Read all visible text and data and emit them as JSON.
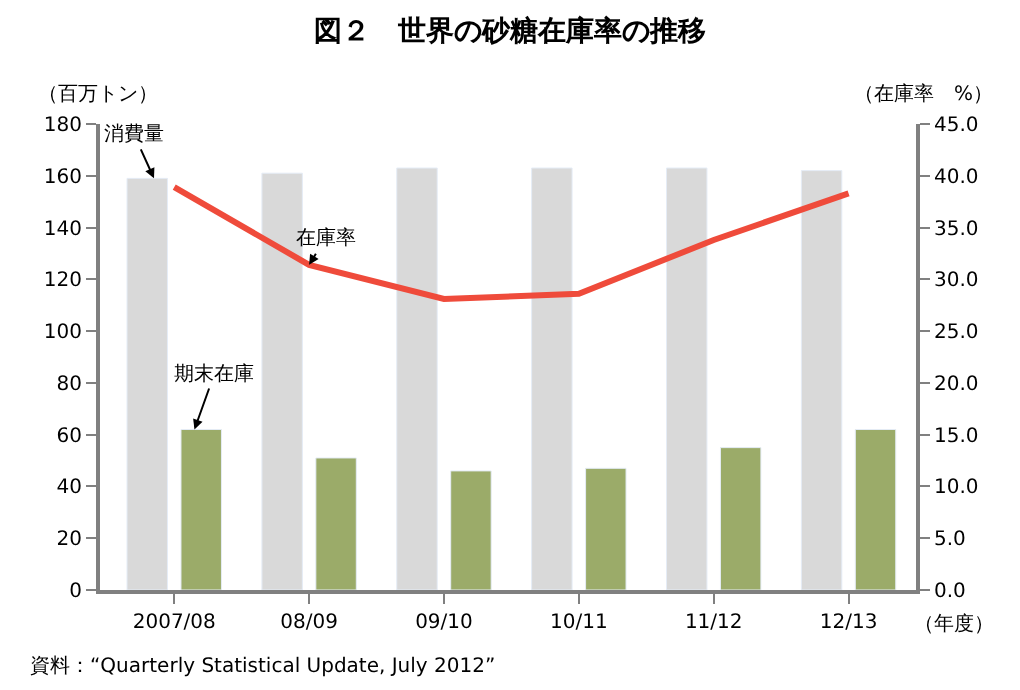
{
  "chart_data": {
    "type": "bar",
    "title": "図２　世界の砂糖在庫率の推移",
    "xlabel": "（年度）",
    "ylabel": "（百万トン）",
    "y2label": "（在庫率　%）",
    "categories": [
      "2007/08",
      "08/09",
      "09/10",
      "10/11",
      "11/12",
      "12/13"
    ],
    "series": [
      {
        "name": "消費量",
        "color": "#d9d9d9",
        "values": [
          159,
          161,
          163,
          163,
          163,
          162
        ]
      },
      {
        "name": "期末在庫",
        "color": "#9bab69",
        "values": [
          62,
          51,
          46,
          47,
          55,
          62
        ]
      },
      {
        "name": "在庫率",
        "type": "line",
        "axis": "y2",
        "color": "#ef4b3b",
        "marker": "none",
        "line_style": "solid",
        "values": [
          38.9,
          31.4,
          28.1,
          28.6,
          33.8,
          38.3
        ]
      }
    ],
    "ylim": [
      0,
      180
    ],
    "yticks": [
      0,
      20,
      40,
      60,
      80,
      100,
      120,
      140,
      160,
      180
    ],
    "y2lim": [
      0,
      45
    ],
    "y2ticks": [
      {
        "value": 0,
        "label": "0.0"
      },
      {
        "value": 5,
        "label": "5.0"
      },
      {
        "value": 10,
        "label": "10.0"
      },
      {
        "value": 15,
        "label": "15.0"
      },
      {
        "value": 20,
        "label": "20.0"
      },
      {
        "value": 25,
        "label": "25.0"
      },
      {
        "value": 30,
        "label": "30.0"
      },
      {
        "value": 35,
        "label": "35.0"
      },
      {
        "value": 40,
        "label": "40.0"
      },
      {
        "value": 45,
        "label": "45.0"
      }
    ],
    "grid": false,
    "legend": false,
    "annotations": [
      "資料：“Quarterly Statistical Update, July 2012”"
    ]
  }
}
